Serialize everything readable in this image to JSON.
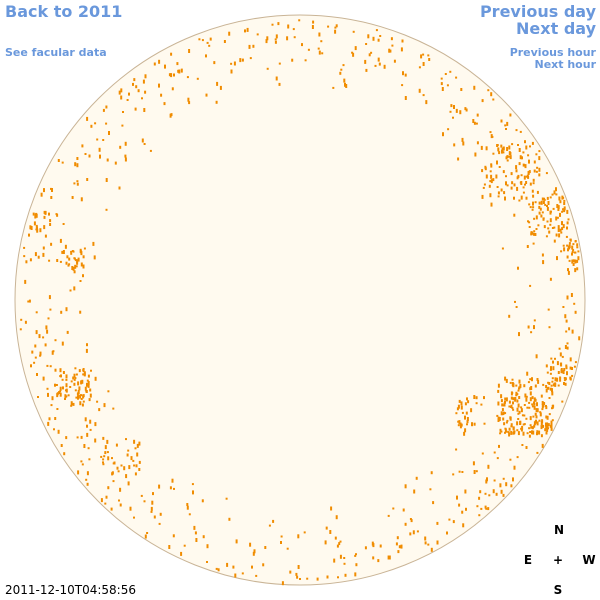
{
  "links": {
    "back_year": "Back to 2011",
    "previous_day": "Previous day",
    "next_day": "Next day",
    "facular_data": "See facular data",
    "previous_hour": "Previous hour",
    "next_hour": "Next hour"
  },
  "compass": {
    "north": "N",
    "east": "E",
    "center": "+",
    "west": "W",
    "south": "S"
  },
  "timestamp": "2011-12-10T04:58:56"
}
